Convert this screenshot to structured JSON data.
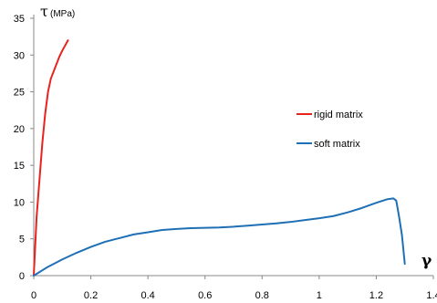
{
  "chart_data": {
    "type": "line",
    "title": "",
    "xlabel": "γ",
    "ylabel_symbol": "τ",
    "ylabel_unit": "(MPa)",
    "xlim": [
      0,
      1.4
    ],
    "ylim": [
      0,
      35
    ],
    "x_ticks": [
      "0",
      "0.2",
      "0.4",
      "0.6",
      "0.8",
      "1",
      "1.2",
      "1.4"
    ],
    "x_tick_values": [
      0,
      0.2,
      0.4,
      0.6,
      0.8,
      1.0,
      1.2,
      1.4
    ],
    "y_ticks": [
      "0",
      "5",
      "10",
      "15",
      "20",
      "25",
      "30",
      "35"
    ],
    "y_tick_values": [
      0,
      5,
      10,
      15,
      20,
      25,
      30,
      35
    ],
    "grid": false,
    "legend_position": "right-middle",
    "series": [
      {
        "name": "rigid matrix",
        "color": "#e8231e",
        "points": [
          [
            0,
            0
          ],
          [
            0.005,
            4
          ],
          [
            0.01,
            8
          ],
          [
            0.02,
            13
          ],
          [
            0.03,
            18
          ],
          [
            0.04,
            22
          ],
          [
            0.05,
            25
          ],
          [
            0.06,
            26.8
          ],
          [
            0.07,
            27.8
          ],
          [
            0.08,
            28.8
          ],
          [
            0.09,
            29.8
          ],
          [
            0.1,
            30.6
          ],
          [
            0.11,
            31.3
          ],
          [
            0.12,
            32
          ]
        ]
      },
      {
        "name": "soft matrix",
        "color": "#1f6fb5",
        "points": [
          [
            0,
            0
          ],
          [
            0.05,
            1.2
          ],
          [
            0.1,
            2.2
          ],
          [
            0.15,
            3.1
          ],
          [
            0.2,
            3.9
          ],
          [
            0.25,
            4.6
          ],
          [
            0.3,
            5.1
          ],
          [
            0.35,
            5.6
          ],
          [
            0.4,
            5.9
          ],
          [
            0.45,
            6.2
          ],
          [
            0.5,
            6.35
          ],
          [
            0.55,
            6.45
          ],
          [
            0.6,
            6.5
          ],
          [
            0.65,
            6.55
          ],
          [
            0.7,
            6.65
          ],
          [
            0.75,
            6.8
          ],
          [
            0.8,
            6.95
          ],
          [
            0.85,
            7.1
          ],
          [
            0.9,
            7.3
          ],
          [
            0.95,
            7.55
          ],
          [
            1.0,
            7.8
          ],
          [
            1.05,
            8.1
          ],
          [
            1.1,
            8.6
          ],
          [
            1.15,
            9.2
          ],
          [
            1.2,
            9.9
          ],
          [
            1.24,
            10.4
          ],
          [
            1.26,
            10.5
          ],
          [
            1.27,
            10.2
          ],
          [
            1.28,
            8.0
          ],
          [
            1.29,
            5.5
          ],
          [
            1.3,
            1.6
          ]
        ]
      }
    ]
  }
}
